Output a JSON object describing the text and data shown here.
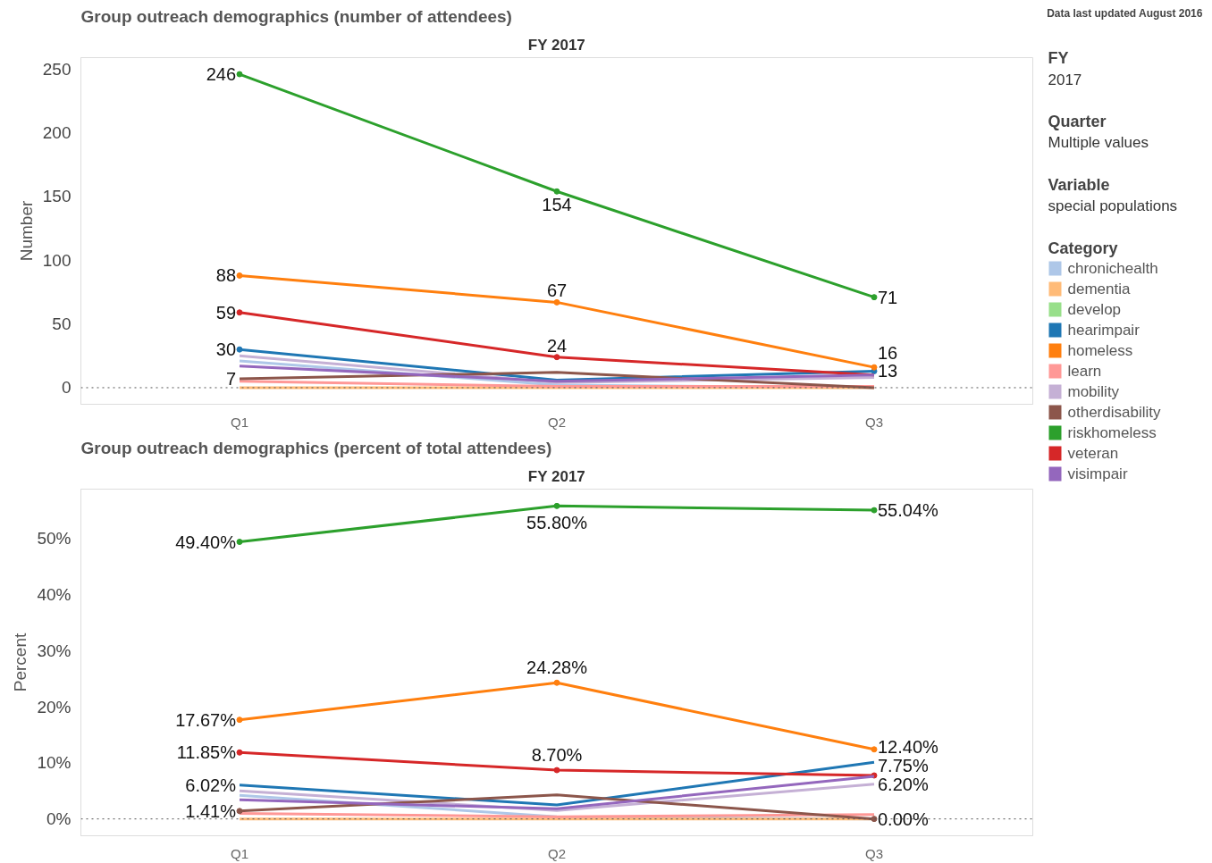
{
  "chart_data": [
    {
      "type": "line",
      "title": "Group outreach demographics (number of attendees)",
      "subtitle": "FY 2017",
      "ylabel": "Number",
      "categories": [
        "Q1",
        "Q2",
        "Q3"
      ],
      "ylim": [
        -13,
        259
      ],
      "yticks": [
        0,
        50,
        100,
        150,
        200,
        250
      ],
      "grid": false,
      "legend": "right",
      "legend_title": "Category",
      "ref_lines": [
        {
          "axis": "y",
          "value": 0,
          "line_style": "dotted",
          "color": "#555555"
        }
      ],
      "series": [
        {
          "name": "chronichealth",
          "color": "#aec7e8",
          "values": [
            21,
            2,
            0
          ]
        },
        {
          "name": "dementia",
          "color": "#ffbb78",
          "values": [
            0,
            0,
            0
          ]
        },
        {
          "name": "develop",
          "color": "#98df8a",
          "values": [
            null,
            null,
            null
          ]
        },
        {
          "name": "hearimpair",
          "color": "#1f77b4",
          "values": [
            30,
            6,
            13
          ],
          "value_labels": [
            "30",
            null,
            "13"
          ],
          "marker": "circle"
        },
        {
          "name": "homeless",
          "color": "#ff7f0e",
          "values": [
            88,
            67,
            16
          ],
          "value_labels": [
            "88",
            "67",
            "16"
          ],
          "marker": "circle"
        },
        {
          "name": "learn",
          "color": "#ff9896",
          "values": [
            5,
            1,
            1
          ]
        },
        {
          "name": "mobility",
          "color": "#c5b0d5",
          "values": [
            25,
            4,
            8
          ]
        },
        {
          "name": "otherdisability",
          "color": "#8c564b",
          "values": [
            7,
            12,
            0
          ],
          "value_labels": [
            "7",
            null,
            null
          ]
        },
        {
          "name": "riskhomeless",
          "color": "#2ca02c",
          "values": [
            246,
            154,
            71
          ],
          "value_labels": [
            "246",
            "154",
            "71"
          ],
          "marker": "circle"
        },
        {
          "name": "veteran",
          "color": "#d62728",
          "values": [
            59,
            24,
            10
          ],
          "value_labels": [
            "59",
            "24",
            null
          ],
          "marker": "circle"
        },
        {
          "name": "visimpair",
          "color": "#9467bd",
          "values": [
            17,
            5,
            10
          ]
        }
      ]
    },
    {
      "type": "line",
      "title": "Group outreach demographics (percent of total attendees)",
      "subtitle": "FY 2017",
      "ylabel": "Percent",
      "categories": [
        "Q1",
        "Q2",
        "Q3"
      ],
      "ylim": [
        -3,
        58.8
      ],
      "grid": false,
      "yticks": [
        {
          "value": 0,
          "label": "0%"
        },
        {
          "value": 10,
          "label": "10%"
        },
        {
          "value": 20,
          "label": "20%"
        },
        {
          "value": 30,
          "label": "30%"
        },
        {
          "value": 40,
          "label": "40%"
        },
        {
          "value": 50,
          "label": "50%"
        }
      ],
      "ref_lines": [
        {
          "axis": "y",
          "value": 0,
          "line_style": "dotted",
          "color": "#555555"
        }
      ],
      "series": [
        {
          "color": "#aec7e8",
          "values": [
            4.2,
            0.4,
            0.0
          ]
        },
        {
          "color": "#ffbb78",
          "values": [
            0.0,
            0.0,
            0.0
          ]
        },
        {
          "color": "#98df8a",
          "values": [
            null,
            null,
            null
          ]
        },
        {
          "color": "#1f77b4",
          "values": [
            6.02,
            2.5,
            10.1
          ],
          "value_labels": [
            "6.02%",
            null,
            null
          ]
        },
        {
          "color": "#ff7f0e",
          "values": [
            17.67,
            24.28,
            12.4
          ],
          "value_labels": [
            "17.67%",
            "24.28%",
            "12.40%"
          ],
          "marker": "circle"
        },
        {
          "color": "#ff9896",
          "values": [
            1.0,
            0.4,
            0.8
          ]
        },
        {
          "color": "#c5b0d5",
          "values": [
            5.0,
            1.5,
            6.2
          ],
          "value_labels": [
            null,
            null,
            "6.20%"
          ]
        },
        {
          "color": "#8c564b",
          "values": [
            1.41,
            4.3,
            0.0
          ],
          "value_labels": [
            "1.41%",
            null,
            "0.00%"
          ],
          "marker": "circle"
        },
        {
          "color": "#2ca02c",
          "values": [
            49.4,
            55.8,
            55.04
          ],
          "value_labels": [
            "49.40%",
            "55.80%",
            "55.04%"
          ],
          "marker": "circle"
        },
        {
          "color": "#d62728",
          "values": [
            11.85,
            8.7,
            7.75
          ],
          "value_labels": [
            "11.85%",
            "8.70%",
            "7.75%"
          ],
          "marker": "circle"
        },
        {
          "color": "#9467bd",
          "values": [
            3.4,
            1.8,
            7.6
          ]
        }
      ]
    },
    {
      "type": "other",
      "annotations": [
        "Data last updated August 2016",
        "FY",
        "2017",
        "Quarter",
        "Multiple values",
        "Variable",
        "special populations"
      ]
    }
  ]
}
